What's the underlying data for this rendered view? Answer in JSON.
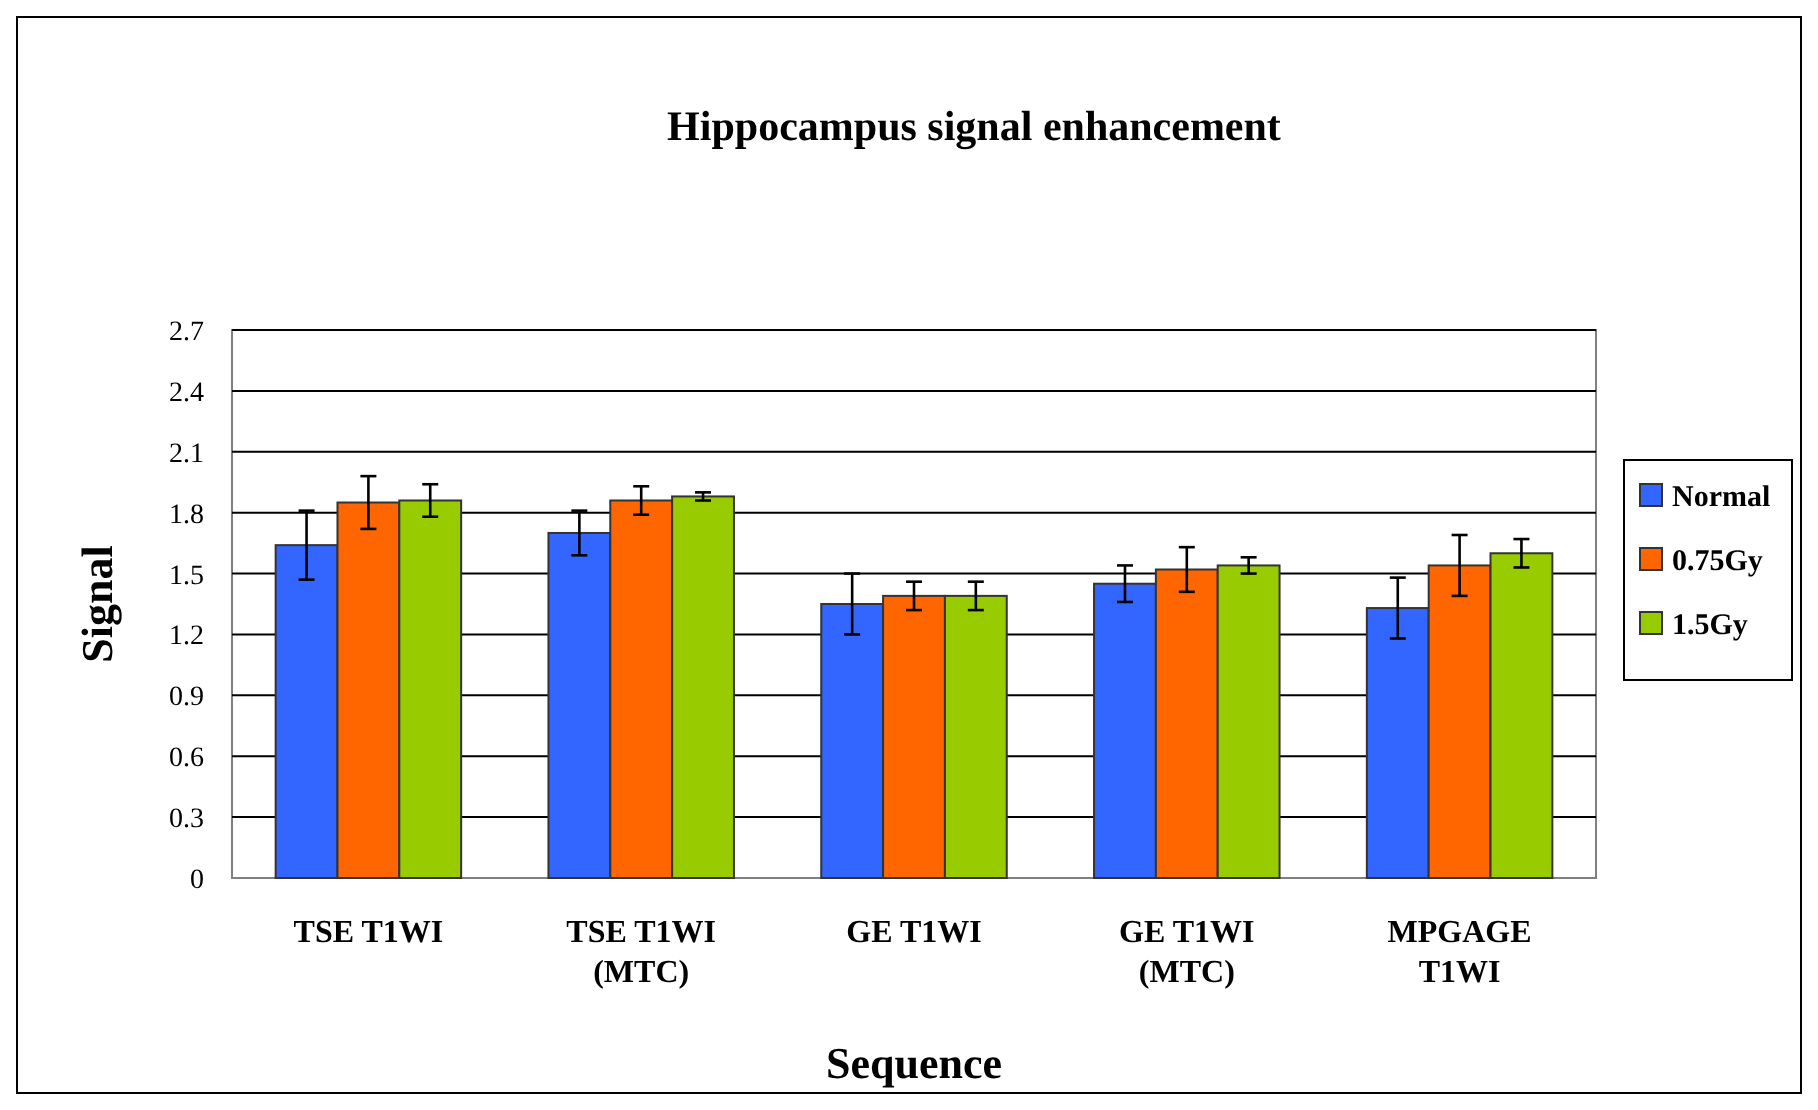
{
  "chart_data": {
    "type": "bar",
    "title": "Hippocampus signal enhancement",
    "xlabel": "Sequence",
    "ylabel": "Signal",
    "categories": [
      "TSE T1WI",
      "TSE T1WI\n(MTC)",
      "GE T1WI",
      "GE T1WI\n(MTC)",
      "MPGAGE\nT1WI"
    ],
    "series": [
      {
        "name": "Normal",
        "color": "#3366ff",
        "values": [
          1.64,
          1.7,
          1.35,
          1.45,
          1.33
        ],
        "errors": [
          0.17,
          0.11,
          0.15,
          0.09,
          0.15
        ]
      },
      {
        "name": "0.75Gy",
        "color": "#ff6600",
        "values": [
          1.85,
          1.86,
          1.39,
          1.52,
          1.54
        ],
        "errors": [
          0.13,
          0.07,
          0.07,
          0.11,
          0.15
        ]
      },
      {
        "name": "1.5Gy",
        "color": "#99cc00",
        "values": [
          1.86,
          1.88,
          1.39,
          1.54,
          1.6
        ],
        "errors": [
          0.08,
          0.02,
          0.07,
          0.04,
          0.07
        ]
      }
    ],
    "ylim": [
      0,
      2.7
    ],
    "yticks": [
      0,
      0.3,
      0.6,
      0.9,
      1.2,
      1.5,
      1.8,
      2.1,
      2.4,
      2.7
    ],
    "grid": "y",
    "legend": "right"
  }
}
